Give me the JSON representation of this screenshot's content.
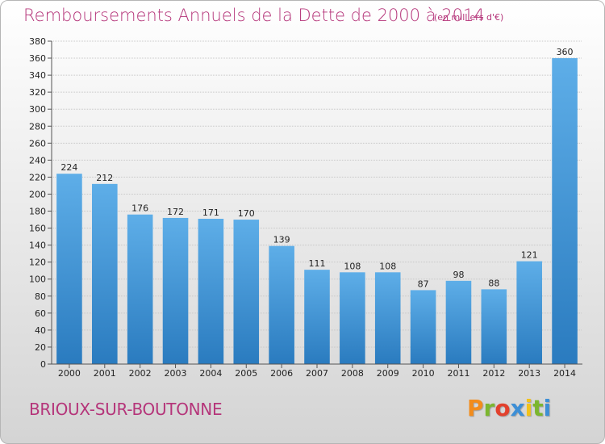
{
  "chart_data": {
    "type": "bar",
    "title": "Remboursements Annuels de la Dette de 2000 à 2014",
    "subtitle": "(en milliers d'€)",
    "categories": [
      "2000",
      "2001",
      "2002",
      "2003",
      "2004",
      "2005",
      "2006",
      "2007",
      "2008",
      "2009",
      "2010",
      "2011",
      "2012",
      "2013",
      "2014"
    ],
    "values": [
      224,
      212,
      176,
      172,
      171,
      170,
      139,
      111,
      108,
      108,
      87,
      98,
      88,
      121,
      360
    ],
    "ylim": [
      0,
      380
    ],
    "yticks": [
      0,
      20,
      40,
      60,
      80,
      100,
      120,
      140,
      160,
      180,
      200,
      220,
      240,
      260,
      280,
      300,
      320,
      340,
      360,
      380
    ],
    "grid": true,
    "bar_color_top": "#5eaee8",
    "bar_color_bottom": "#2a7bbf"
  },
  "footer": {
    "city": "BRIOUX-SUR-BOUTONNE",
    "brand": "Proxiti",
    "brand_colors": [
      "#f28c1c",
      "#7cb62f",
      "#e2412d",
      "#3d8fd6",
      "#f2c21b",
      "#7cb62f",
      "#3d8fd6"
    ]
  },
  "colors": {
    "title": "#b5357a",
    "grid": "#c8c8c8",
    "axis": "#555555"
  }
}
